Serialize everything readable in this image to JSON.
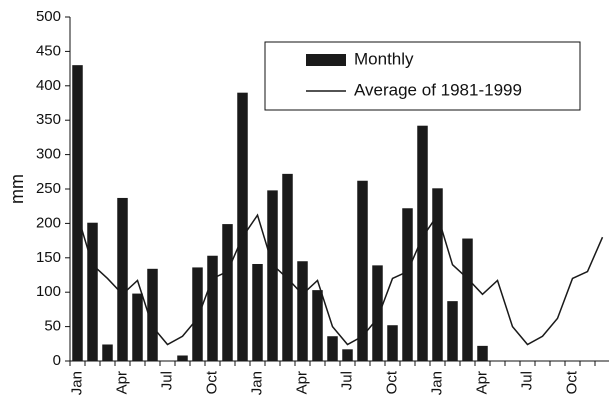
{
  "chart_data": {
    "type": "bar_line",
    "y_label": "mm",
    "categories": [
      "Jan",
      null,
      null,
      "Apr",
      null,
      null,
      "Jul",
      null,
      null,
      "Oct",
      null,
      null,
      "Jan",
      null,
      null,
      "Apr",
      null,
      null,
      "Jul",
      null,
      null,
      "Oct",
      null,
      null,
      "Jan",
      null,
      null,
      "Apr",
      null,
      null,
      "Jul",
      null,
      null,
      "Oct",
      null,
      null
    ],
    "series": [
      {
        "name": "Monthly",
        "type": "bar",
        "color": "#1a1a1a",
        "values": [
          430,
          201,
          24,
          237,
          98,
          134,
          null,
          8,
          136,
          153,
          199,
          390,
          141,
          248,
          272,
          145,
          103,
          36,
          17,
          262,
          139,
          52,
          222,
          342,
          251,
          87,
          178,
          22,
          null,
          null,
          null,
          null,
          null,
          null,
          null,
          null
        ]
      },
      {
        "name": "Average of 1981-1999",
        "type": "line",
        "color": "#1a1a1a",
        "values": [
          212,
          140,
          120,
          97,
          117,
          50,
          24,
          36,
          62,
          120,
          130,
          180,
          212,
          140,
          120,
          97,
          117,
          50,
          24,
          36,
          62,
          120,
          130,
          180,
          212,
          140,
          120,
          97,
          117,
          50,
          24,
          36,
          62,
          120,
          130,
          180
        ]
      }
    ],
    "ylim": [
      0,
      500
    ],
    "yticks": [
      0,
      50,
      100,
      150,
      200,
      250,
      300,
      350,
      400,
      450,
      500
    ],
    "grid": false
  }
}
